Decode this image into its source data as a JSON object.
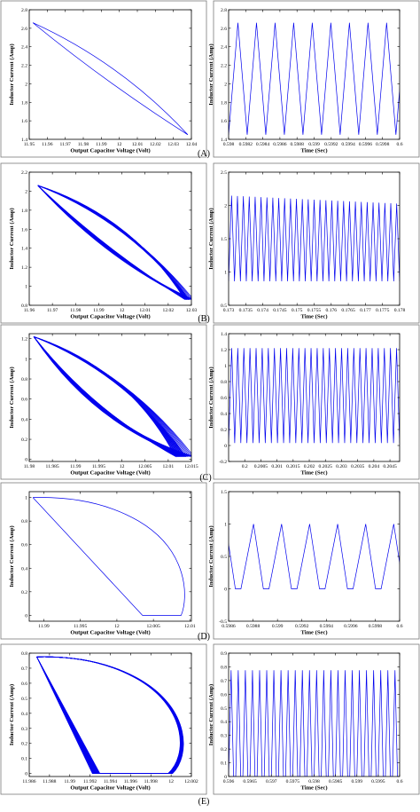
{
  "colors": {
    "trace": "#0000ee",
    "axis": "#000000",
    "frame": "#7a7a7a"
  },
  "panel_labels": [
    "(A)",
    "(B)",
    "(C)",
    "(D)",
    "(E)"
  ],
  "chart_data": [
    {
      "type": "line",
      "panel": "(A)",
      "plot": "phase",
      "xlabel": "Output Capacitor Voltage (Volt)",
      "ylabel": "Inductor Current (Amp)",
      "xlim": [
        11.95,
        12.04
      ],
      "ylim": [
        1.4,
        2.8
      ],
      "x_ticks": [
        "11.95",
        "11.96",
        "11.97",
        "11.98",
        "11.99",
        "12",
        "12.01",
        "12.02",
        "12.03",
        "12.04"
      ],
      "y_ticks": [
        "1.4",
        "1.6",
        "1.8",
        "2",
        "2.2",
        "2.4",
        "2.6",
        "2.8"
      ],
      "loop": {
        "start": [
          11.952,
          2.66
        ],
        "end": [
          12.038,
          1.45
        ],
        "upper_bow": 0.1,
        "lower_bow": -0.03,
        "cycles": 1
      }
    },
    {
      "type": "line",
      "panel": "(A)",
      "plot": "time",
      "xlabel": "Time (Sec)",
      "ylabel": "Inductor Current (Amp)",
      "xlim": [
        0.598,
        0.6
      ],
      "ylim": [
        1.4,
        2.8
      ],
      "x_ticks": [
        "0.598",
        "0.5982",
        "0.5984",
        "0.5986",
        "0.5988",
        "0.599",
        "0.5992",
        "0.5994",
        "0.5996",
        "0.5998",
        "0.6"
      ],
      "y_ticks": [
        "1.4",
        "1.6",
        "1.8",
        "2",
        "2.2",
        "2.4",
        "2.6",
        "2.8"
      ],
      "wave": {
        "kind": "triangle",
        "min": 1.45,
        "max": 2.66,
        "cycles": 9.2,
        "rise_fraction": 0.5
      }
    },
    {
      "type": "line",
      "panel": "(B)",
      "plot": "phase",
      "xlabel": "Output Capacitor Voltage (Volt)",
      "ylabel": "Inductor Current (Amp)",
      "xlim": [
        11.96,
        12.035
      ],
      "ylim": [
        0.8,
        2.2
      ],
      "x_ticks": [
        "11.96",
        "11.97",
        "11.98",
        "11.99",
        "12",
        "12.01",
        "12.02",
        "12.03"
      ],
      "y_ticks": [
        "0.8",
        "1",
        "1.2",
        "1.4",
        "1.6",
        "1.8",
        "2",
        "2.2"
      ],
      "loop": {
        "start": [
          11.964,
          2.06
        ],
        "end": [
          12.032,
          0.86
        ],
        "upper_bow": 0.18,
        "lower_bow": -0.05,
        "cycles": 14,
        "spread_x": 0.004,
        "spread_y": 0.1
      }
    },
    {
      "type": "line",
      "panel": "(B)",
      "plot": "time",
      "xlabel": "Time (Sec)",
      "ylabel": "Inductor Current (Amp)",
      "xlim": [
        0.173,
        0.178
      ],
      "ylim": [
        0.5,
        2.5
      ],
      "x_ticks": [
        "0.173",
        "0.1735",
        "0.174",
        "0.1745",
        "0.175",
        "0.1755",
        "0.176",
        "0.1765",
        "0.177",
        "0.1775",
        "0.178"
      ],
      "y_ticks": [
        "0.5",
        "1",
        "1.5",
        "2",
        "2.5"
      ],
      "wave": {
        "kind": "triangle",
        "min": 0.86,
        "max": 2.15,
        "max_end": 2.02,
        "cycles": 29,
        "rise_fraction": 0.5
      }
    },
    {
      "type": "line",
      "panel": "(C)",
      "plot": "phase",
      "xlabel": "Output Capacitor Voltage (Volt)",
      "ylabel": "Inductor Current (Amp)",
      "xlim": [
        11.98,
        12.0155
      ],
      "ylim": [
        -0.02,
        1.25
      ],
      "x_ticks": [
        "11.98",
        "11.985",
        "11.99",
        "11.995",
        "12",
        "12.005",
        "12.01",
        "12.015"
      ],
      "y_ticks": [
        "0",
        "0.2",
        "0.4",
        "0.6",
        "0.8",
        "1",
        "1.2"
      ],
      "loop": {
        "start": [
          11.981,
          1.22
        ],
        "end": [
          12.012,
          0.03
        ],
        "upper_bow": 0.2,
        "lower_bow": -0.1,
        "cycles": 24,
        "spread_x": 0.004,
        "spread_y": 0.08
      }
    },
    {
      "type": "line",
      "panel": "(C)",
      "plot": "time",
      "xlabel": "Time (Sec)",
      "ylabel": "Inductor Current (Amp)",
      "xlim": [
        0.1995,
        0.2048
      ],
      "ylim": [
        -0.2,
        1.4
      ],
      "x_ticks": [
        "0.2",
        "0.2005",
        "0.201",
        "0.2015",
        "0.202",
        "0.2025",
        "0.203",
        "0.2035",
        "0.204",
        "0.2045"
      ],
      "x_tick_values": [
        0.2,
        0.2005,
        0.201,
        0.2015,
        0.202,
        0.2025,
        0.203,
        0.2035,
        0.204,
        0.2045
      ],
      "y_ticks": [
        "-0.2",
        "0",
        "0.2",
        "0.4",
        "0.6",
        "0.8",
        "1",
        "1.2",
        "1.4"
      ],
      "wave": {
        "kind": "triangle",
        "min": 0.03,
        "max": 1.22,
        "cycles": 28,
        "rise_fraction": 0.5
      }
    },
    {
      "type": "line",
      "panel": "(D)",
      "plot": "phase",
      "xlabel": "Output Capacitor Voltage (Volt)",
      "ylabel": "Inductor Current (Amp)",
      "xlim": [
        11.988,
        12.0102
      ],
      "ylim": [
        -0.05,
        1.05
      ],
      "x_ticks": [
        "11.99",
        "11.995",
        "12",
        "12.005",
        "12.01"
      ],
      "x_tick_values": [
        11.99,
        11.995,
        12,
        12.005,
        12.01
      ],
      "y_ticks": [
        "0",
        "0.2",
        "0.4",
        "0.6",
        "0.8",
        "1"
      ],
      "dcm_loop": {
        "peak": [
          11.9885,
          1.0
        ],
        "zero_start": [
          12.0035,
          0.0
        ],
        "zero_end": [
          12.0088,
          0.0
        ],
        "bulge_x": 12.0098
      }
    },
    {
      "type": "line",
      "panel": "(D)",
      "plot": "time",
      "xlabel": "Time (Sec)",
      "ylabel": "Inductor Current (Amp)",
      "xlim": [
        0.5986,
        0.6
      ],
      "ylim": [
        -0.5,
        1.5
      ],
      "x_ticks": [
        "0.5986",
        "0.5988",
        "0.599",
        "0.5992",
        "0.5994",
        "0.5996",
        "0.5998",
        "0.6"
      ],
      "y_ticks": [
        "-0.5",
        "0",
        "0.5",
        "1",
        "1.5"
      ],
      "wave": {
        "kind": "dcm",
        "min": 0.0,
        "max": 1.0,
        "cycles": 6.1,
        "rise_fraction": 0.45,
        "zero_fraction": 0.2,
        "phase": 0.56
      }
    },
    {
      "type": "line",
      "panel": "(E)",
      "plot": "phase",
      "xlabel": "Output Capacitor Voltage (Volt)",
      "ylabel": "Inductor Current (Amp)",
      "xlim": [
        11.986,
        12.0032
      ],
      "ylim": [
        -0.02,
        0.8
      ],
      "x_ticks": [
        "11.986",
        "11.988",
        "11.99",
        "11.992",
        "11.994",
        "11.996",
        "11.998",
        "12",
        "12.002"
      ],
      "y_ticks": [
        "0",
        "0.1",
        "0.2",
        "0.3",
        "0.4",
        "0.5",
        "0.6",
        "0.7",
        "0.8"
      ],
      "dcm_loop": {
        "peak": [
          11.9868,
          0.775
        ],
        "zero_start": [
          11.9935,
          0.0
        ],
        "zero_end": [
          12.0012,
          0.0
        ],
        "bulge_x": 12.0031,
        "cycles": 18,
        "spread_x": 0.0016
      }
    },
    {
      "type": "line",
      "panel": "(E)",
      "plot": "time",
      "xlabel": "Time (Sec)",
      "ylabel": "Inductor Current (Amp)",
      "xlim": [
        0.596,
        0.6
      ],
      "ylim": [
        0,
        0.9
      ],
      "x_ticks": [
        "0.596",
        "0.5965",
        "0.597",
        "0.5975",
        "0.598",
        "0.5985",
        "0.599",
        "0.5995",
        "0.6"
      ],
      "y_ticks": [
        "0",
        "0.1",
        "0.2",
        "0.3",
        "0.4",
        "0.5",
        "0.6",
        "0.7",
        "0.8",
        "0.9"
      ],
      "wave": {
        "kind": "dcm",
        "min": 0.0,
        "max": 0.775,
        "cycles": 24,
        "rise_fraction": 0.35,
        "zero_fraction": 0.3,
        "phase": 0.0
      }
    }
  ]
}
